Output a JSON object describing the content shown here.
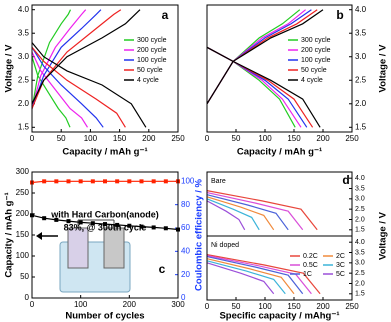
{
  "chart_data": [
    {
      "type": "line",
      "label": "a",
      "xlabel": "Capacity / mAh g⁻¹",
      "ylabel": "Voltage / V",
      "xlim": [
        0,
        250
      ],
      "xticks": [
        0,
        50,
        100,
        150,
        200,
        250
      ],
      "ylim": [
        1.4,
        4.1
      ],
      "yticks": [
        1.5,
        {
          "value": 2,
          "label": "2.0"
        },
        2.5,
        {
          "value": 3,
          "label": "3.0"
        },
        3.5,
        {
          "value": 4,
          "label": "4.0"
        }
      ],
      "series": [
        {
          "name": "300 cycle",
          "color": "#22cc22",
          "curves": [
            {
              "x": [
                0,
                10,
                30,
                50,
                62,
                66
              ],
              "y": [
                1.9,
                2.6,
                3.3,
                3.7,
                3.9,
                4.0
              ]
            },
            {
              "x": [
                0,
                10,
                30,
                45,
                58,
                65
              ],
              "y": [
                3.0,
                2.6,
                2.2,
                1.9,
                1.7,
                1.5
              ]
            }
          ]
        },
        {
          "name": "200 cycle",
          "color": "#ee22ee",
          "curves": [
            {
              "x": [
                0,
                15,
                40,
                65,
                85,
                92
              ],
              "y": [
                1.9,
                2.6,
                3.2,
                3.6,
                3.9,
                4.0
              ]
            },
            {
              "x": [
                0,
                15,
                40,
                65,
                85,
                95
              ],
              "y": [
                3.1,
                2.7,
                2.3,
                1.9,
                1.7,
                1.5
              ]
            }
          ]
        },
        {
          "name": "100 cycle",
          "color": "#2233ee",
          "curves": [
            {
              "x": [
                0,
                20,
                50,
                85,
                110,
                118
              ],
              "y": [
                1.9,
                2.6,
                3.2,
                3.6,
                3.9,
                4.0
              ]
            },
            {
              "x": [
                0,
                20,
                50,
                85,
                110,
                122
              ],
              "y": [
                3.2,
                2.8,
                2.4,
                2.0,
                1.7,
                1.5
              ]
            }
          ]
        },
        {
          "name": "50 cycle",
          "color": "#ee2222",
          "curves": [
            {
              "x": [
                0,
                20,
                60,
                110,
                140,
                152
              ],
              "y": [
                1.9,
                2.5,
                3.1,
                3.6,
                3.9,
                4.0
              ]
            },
            {
              "x": [
                0,
                20,
                60,
                110,
                145,
                160
              ],
              "y": [
                3.2,
                2.9,
                2.5,
                2.1,
                1.8,
                1.5
              ]
            }
          ]
        },
        {
          "name": "4 cycle",
          "color": "#000000",
          "curves": [
            {
              "x": [
                0,
                20,
                60,
                120,
                160,
                185
              ],
              "y": [
                2.0,
                2.5,
                3.0,
                3.4,
                3.7,
                4.0
              ]
            },
            {
              "x": [
                0,
                20,
                60,
                120,
                170,
                195
              ],
              "y": [
                3.3,
                3.0,
                2.7,
                2.4,
                2.0,
                1.5
              ]
            }
          ]
        }
      ]
    },
    {
      "type": "line",
      "label": "b",
      "xlabel": "Capacity / mAh g⁻¹",
      "ylabel": "Voltage / V",
      "xlim": [
        0,
        250
      ],
      "xticks": [
        0,
        50,
        100,
        150,
        200,
        250
      ],
      "ylim": [
        1.4,
        4.1
      ],
      "yticks": [
        1.5,
        {
          "value": 2,
          "label": "2.0"
        },
        2.5,
        {
          "value": 3,
          "label": "3.0"
        },
        3.5,
        {
          "value": 4,
          "label": "4.0"
        }
      ],
      "series": [
        {
          "name": "300 cycle",
          "color": "#22cc22",
          "curves": [
            {
              "x": [
                0,
                45,
                90,
                130,
                160
              ],
              "y": [
                2.0,
                2.9,
                3.4,
                3.7,
                4.0
              ]
            },
            {
              "x": [
                0,
                45,
                90,
                125,
                152
              ],
              "y": [
                3.2,
                2.9,
                2.5,
                2.1,
                1.5
              ]
            }
          ]
        },
        {
          "name": "200 cycle",
          "color": "#ee22ee",
          "curves": [
            {
              "x": [
                0,
                45,
                95,
                140,
                170
              ],
              "y": [
                2.0,
                2.9,
                3.4,
                3.7,
                4.0
              ]
            },
            {
              "x": [
                0,
                45,
                95,
                130,
                162
              ],
              "y": [
                3.2,
                2.9,
                2.5,
                2.1,
                1.5
              ]
            }
          ]
        },
        {
          "name": "100 cycle",
          "color": "#2233ee",
          "curves": [
            {
              "x": [
                0,
                45,
                100,
                145,
                180
              ],
              "y": [
                2.0,
                2.9,
                3.4,
                3.7,
                4.0
              ]
            },
            {
              "x": [
                0,
                45,
                100,
                140,
                172
              ],
              "y": [
                3.2,
                2.9,
                2.5,
                2.1,
                1.5
              ]
            }
          ]
        },
        {
          "name": "50 cycle",
          "color": "#ee2222",
          "curves": [
            {
              "x": [
                0,
                45,
                105,
                155,
                190
              ],
              "y": [
                2.0,
                2.9,
                3.4,
                3.7,
                4.0
              ]
            },
            {
              "x": [
                0,
                45,
                105,
                150,
                182
              ],
              "y": [
                3.2,
                2.9,
                2.5,
                2.1,
                1.5
              ]
            }
          ]
        },
        {
          "name": "4 cycle",
          "color": "#000000",
          "curves": [
            {
              "x": [
                0,
                45,
                110,
                165,
                200
              ],
              "y": [
                2.0,
                2.9,
                3.4,
                3.7,
                4.0
              ]
            },
            {
              "x": [
                0,
                45,
                110,
                165,
                195
              ],
              "y": [
                3.2,
                2.9,
                2.5,
                2.1,
                1.5
              ]
            }
          ]
        }
      ]
    },
    {
      "type": "scatter",
      "label": "c",
      "xlabel": "Number of cycles",
      "ylabel": "Capacity / mAh g⁻¹",
      "y2label": "Coulombic efficiency / %",
      "annotations": [
        "with Hard Carbon(anode)",
        "83%, @ 300th cycle"
      ],
      "xlim": [
        0,
        300
      ],
      "xticks": [
        0,
        100,
        200,
        300
      ],
      "ylim": [
        0,
        300
      ],
      "yticks": [
        0,
        50,
        100,
        150,
        200,
        250,
        300
      ],
      "y2lim": [
        0,
        108
      ],
      "y2ticks": [
        0,
        20,
        40,
        60,
        80,
        100
      ],
      "series": [
        {
          "color": "#000000",
          "x": [
            0,
            25,
            50,
            75,
            100,
            125,
            150,
            175,
            200,
            225,
            250,
            275,
            300
          ],
          "values": [
            197,
            190,
            186,
            183,
            180,
            178,
            176,
            174,
            172,
            170,
            168,
            166,
            163
          ]
        },
        {
          "color": "#ff2200",
          "axis": "y2",
          "x": [
            0,
            25,
            50,
            75,
            100,
            125,
            150,
            175,
            200,
            225,
            250,
            275,
            300
          ],
          "values": [
            99,
            100,
            100,
            100,
            100,
            100,
            100,
            100,
            100,
            100,
            100,
            100,
            100
          ]
        }
      ]
    },
    {
      "type": "line",
      "label": "d",
      "xlabel": "Specific capacity / mAhg⁻¹",
      "ylabel": "Voltage / V",
      "xlim": [
        0,
        250
      ],
      "xticks": [
        0,
        50,
        100,
        150,
        200,
        250
      ],
      "ylim": [
        1.2,
        4.3
      ],
      "yticks": [
        1.5,
        {
          "value": 2,
          "label": "2.0"
        },
        2.5,
        {
          "value": 3,
          "label": "3.0"
        },
        3.5,
        {
          "value": 4,
          "label": "4.0"
        }
      ],
      "panels": [
        {
          "title": "Bare",
          "series": [
            {
              "color": "#e8473c",
              "x": [
                0,
                95,
                162,
                190
              ],
              "y": [
                3.4,
                2.9,
                2.5,
                1.5
              ]
            },
            {
              "color": "#d94fd9",
              "x": [
                0,
                83,
                140,
                165
              ],
              "y": [
                3.3,
                2.8,
                2.4,
                1.5
              ]
            },
            {
              "color": "#4b62d9",
              "x": [
                0,
                70,
                119,
                140
              ],
              "y": [
                3.2,
                2.7,
                2.3,
                1.5
              ]
            },
            {
              "color": "#f08a3c",
              "x": [
                0,
                58,
                98,
                115
              ],
              "y": [
                3.1,
                2.6,
                2.2,
                1.5
              ]
            },
            {
              "color": "#3cb4d9",
              "x": [
                0,
                45,
                77,
                90
              ],
              "y": [
                3.0,
                2.5,
                2.1,
                1.5
              ]
            },
            {
              "color": "#9b4fd9",
              "x": [
                0,
                33,
                55,
                65
              ],
              "y": [
                2.9,
                2.4,
                2.0,
                1.5
              ]
            }
          ]
        },
        {
          "title": "Ni doped",
          "series": [
            {
              "name": "0.2C",
              "color": "#e8473c",
              "x": [
                0,
                98,
                166,
                195
              ],
              "y": [
                3.4,
                2.9,
                2.5,
                1.5
              ]
            },
            {
              "name": "0.5C",
              "color": "#d94fd9",
              "x": [
                0,
                90,
                153,
                180
              ],
              "y": [
                3.35,
                2.85,
                2.45,
                1.5
              ]
            },
            {
              "name": "1C",
              "color": "#4b62d9",
              "x": [
                0,
                83,
                140,
                165
              ],
              "y": [
                3.3,
                2.8,
                2.4,
                1.5
              ]
            },
            {
              "name": "2C",
              "color": "#f08a3c",
              "x": [
                0,
                75,
                128,
                150
              ],
              "y": [
                3.2,
                2.7,
                2.3,
                1.5
              ]
            },
            {
              "name": "3C",
              "color": "#3cb4d9",
              "x": [
                0,
                68,
                115,
                135
              ],
              "y": [
                3.1,
                2.6,
                2.2,
                1.5
              ]
            },
            {
              "name": "5C",
              "color": "#9b4fd9",
              "x": [
                0,
                58,
                98,
                115
              ],
              "y": [
                3.0,
                2.5,
                2.1,
                1.5
              ]
            }
          ]
        }
      ]
    }
  ]
}
